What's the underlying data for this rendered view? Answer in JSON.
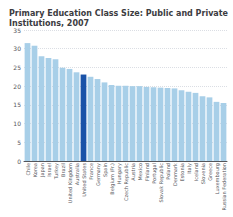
{
  "chart_data": {
    "type": "bar",
    "title": "Primary Education Class Size: Public and Private Institutions, 2007",
    "categories": [
      "Chile",
      "Korea",
      "Japan",
      "Israel",
      "Turkey",
      "Brazil",
      "United Kingdom",
      "Australia",
      "United States",
      "France",
      "Germany",
      "Spain",
      "Belgium (Fr.)",
      "Hungary",
      "Czech Republic",
      "Austria",
      "Mexico",
      "Finland",
      "Portugal",
      "Slovak Republic",
      "Poland",
      "Denmark",
      "Estonia",
      "Italy",
      "Iceland",
      "Slovenia",
      "Greece",
      "Luxembourg",
      "Russian Federation"
    ],
    "values": [
      31.5,
      30.8,
      28.0,
      27.5,
      27.2,
      24.9,
      24.6,
      23.7,
      23.1,
      22.5,
      21.9,
      21.0,
      20.3,
      20.1,
      20.1,
      20.0,
      20.0,
      19.8,
      19.7,
      19.6,
      19.5,
      19.4,
      18.9,
      18.5,
      18.2,
      17.3,
      17.0,
      15.8,
      15.5
    ],
    "colors": [
      "#a8cfe8",
      "#a8cfe8",
      "#a8cfe8",
      "#a8cfe8",
      "#a8cfe8",
      "#a8cfe8",
      "#a8cfe8",
      "#a8cfe8",
      "#1a52a8",
      "#a8cfe8",
      "#a8cfe8",
      "#a8cfe8",
      "#a8cfe8",
      "#a8cfe8",
      "#a8cfe8",
      "#a8cfe8",
      "#a8cfe8",
      "#a8cfe8",
      "#a8cfe8",
      "#a8cfe8",
      "#a8cfe8",
      "#a8cfe8",
      "#a8cfe8",
      "#a8cfe8",
      "#a8cfe8",
      "#a8cfe8",
      "#a8cfe8",
      "#a8cfe8",
      "#a8cfe8"
    ],
    "ylim": [
      0,
      35
    ],
    "yticks": [
      0,
      5,
      10,
      15,
      20,
      25,
      30,
      35
    ],
    "grid": true
  }
}
